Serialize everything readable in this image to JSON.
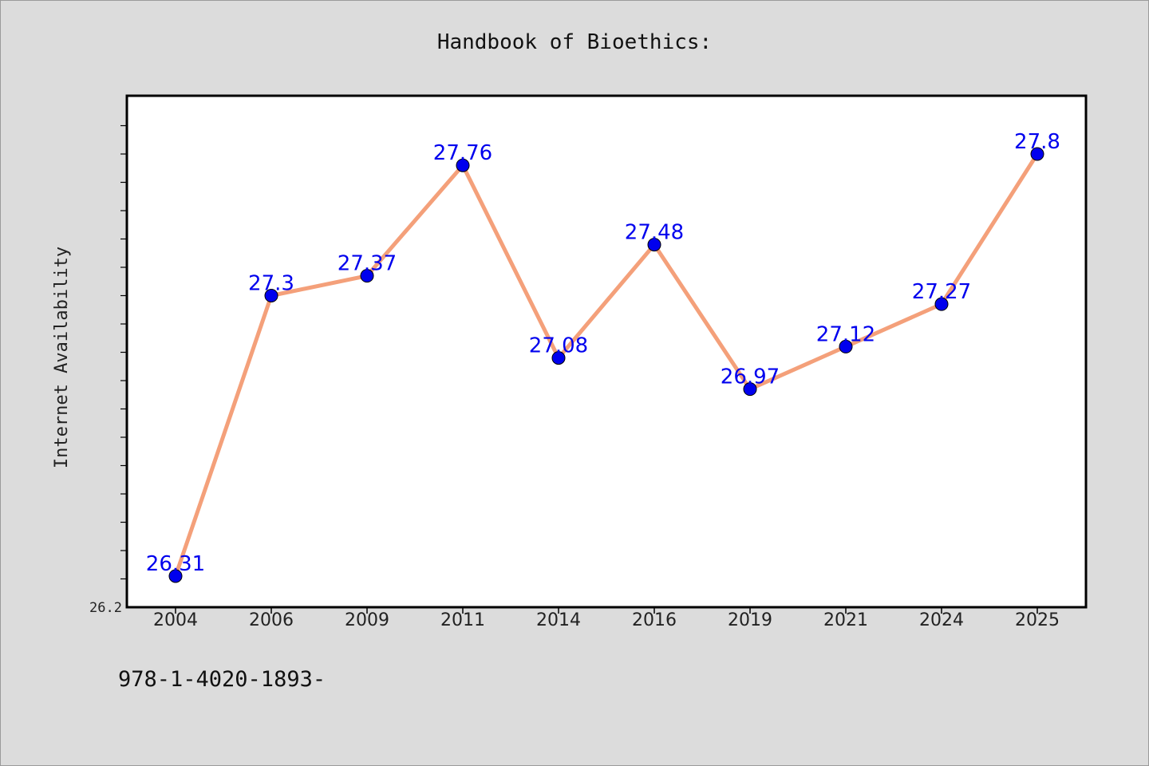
{
  "chart_data": {
    "type": "line",
    "title": "Handbook of Bioethics:",
    "ylabel": "Internet Availability",
    "xlabel": "",
    "categories": [
      "2004",
      "2006",
      "2009",
      "2011",
      "2014",
      "2016",
      "2019",
      "2021",
      "2024",
      "2025"
    ],
    "values": [
      26.31,
      27.3,
      27.37,
      27.76,
      27.08,
      27.48,
      26.97,
      27.12,
      27.27,
      27.8
    ],
    "data_labels": [
      "26.31",
      "27.3",
      "27.37",
      "27.76",
      "27.08",
      "27.48",
      "26.97",
      "27.12",
      "27.27",
      "27.8"
    ],
    "ylim": [
      26.2,
      28.0
    ],
    "ytick_labels": [
      "26.2"
    ],
    "grid": false,
    "legend": "none",
    "colors": {
      "line": "#f4a07a",
      "marker": "#0000ee",
      "label": "#0000ee",
      "plot_bg": "#ffffff",
      "page_bg": "#dcdcdc"
    }
  },
  "footer": "978-1-4020-1893-"
}
